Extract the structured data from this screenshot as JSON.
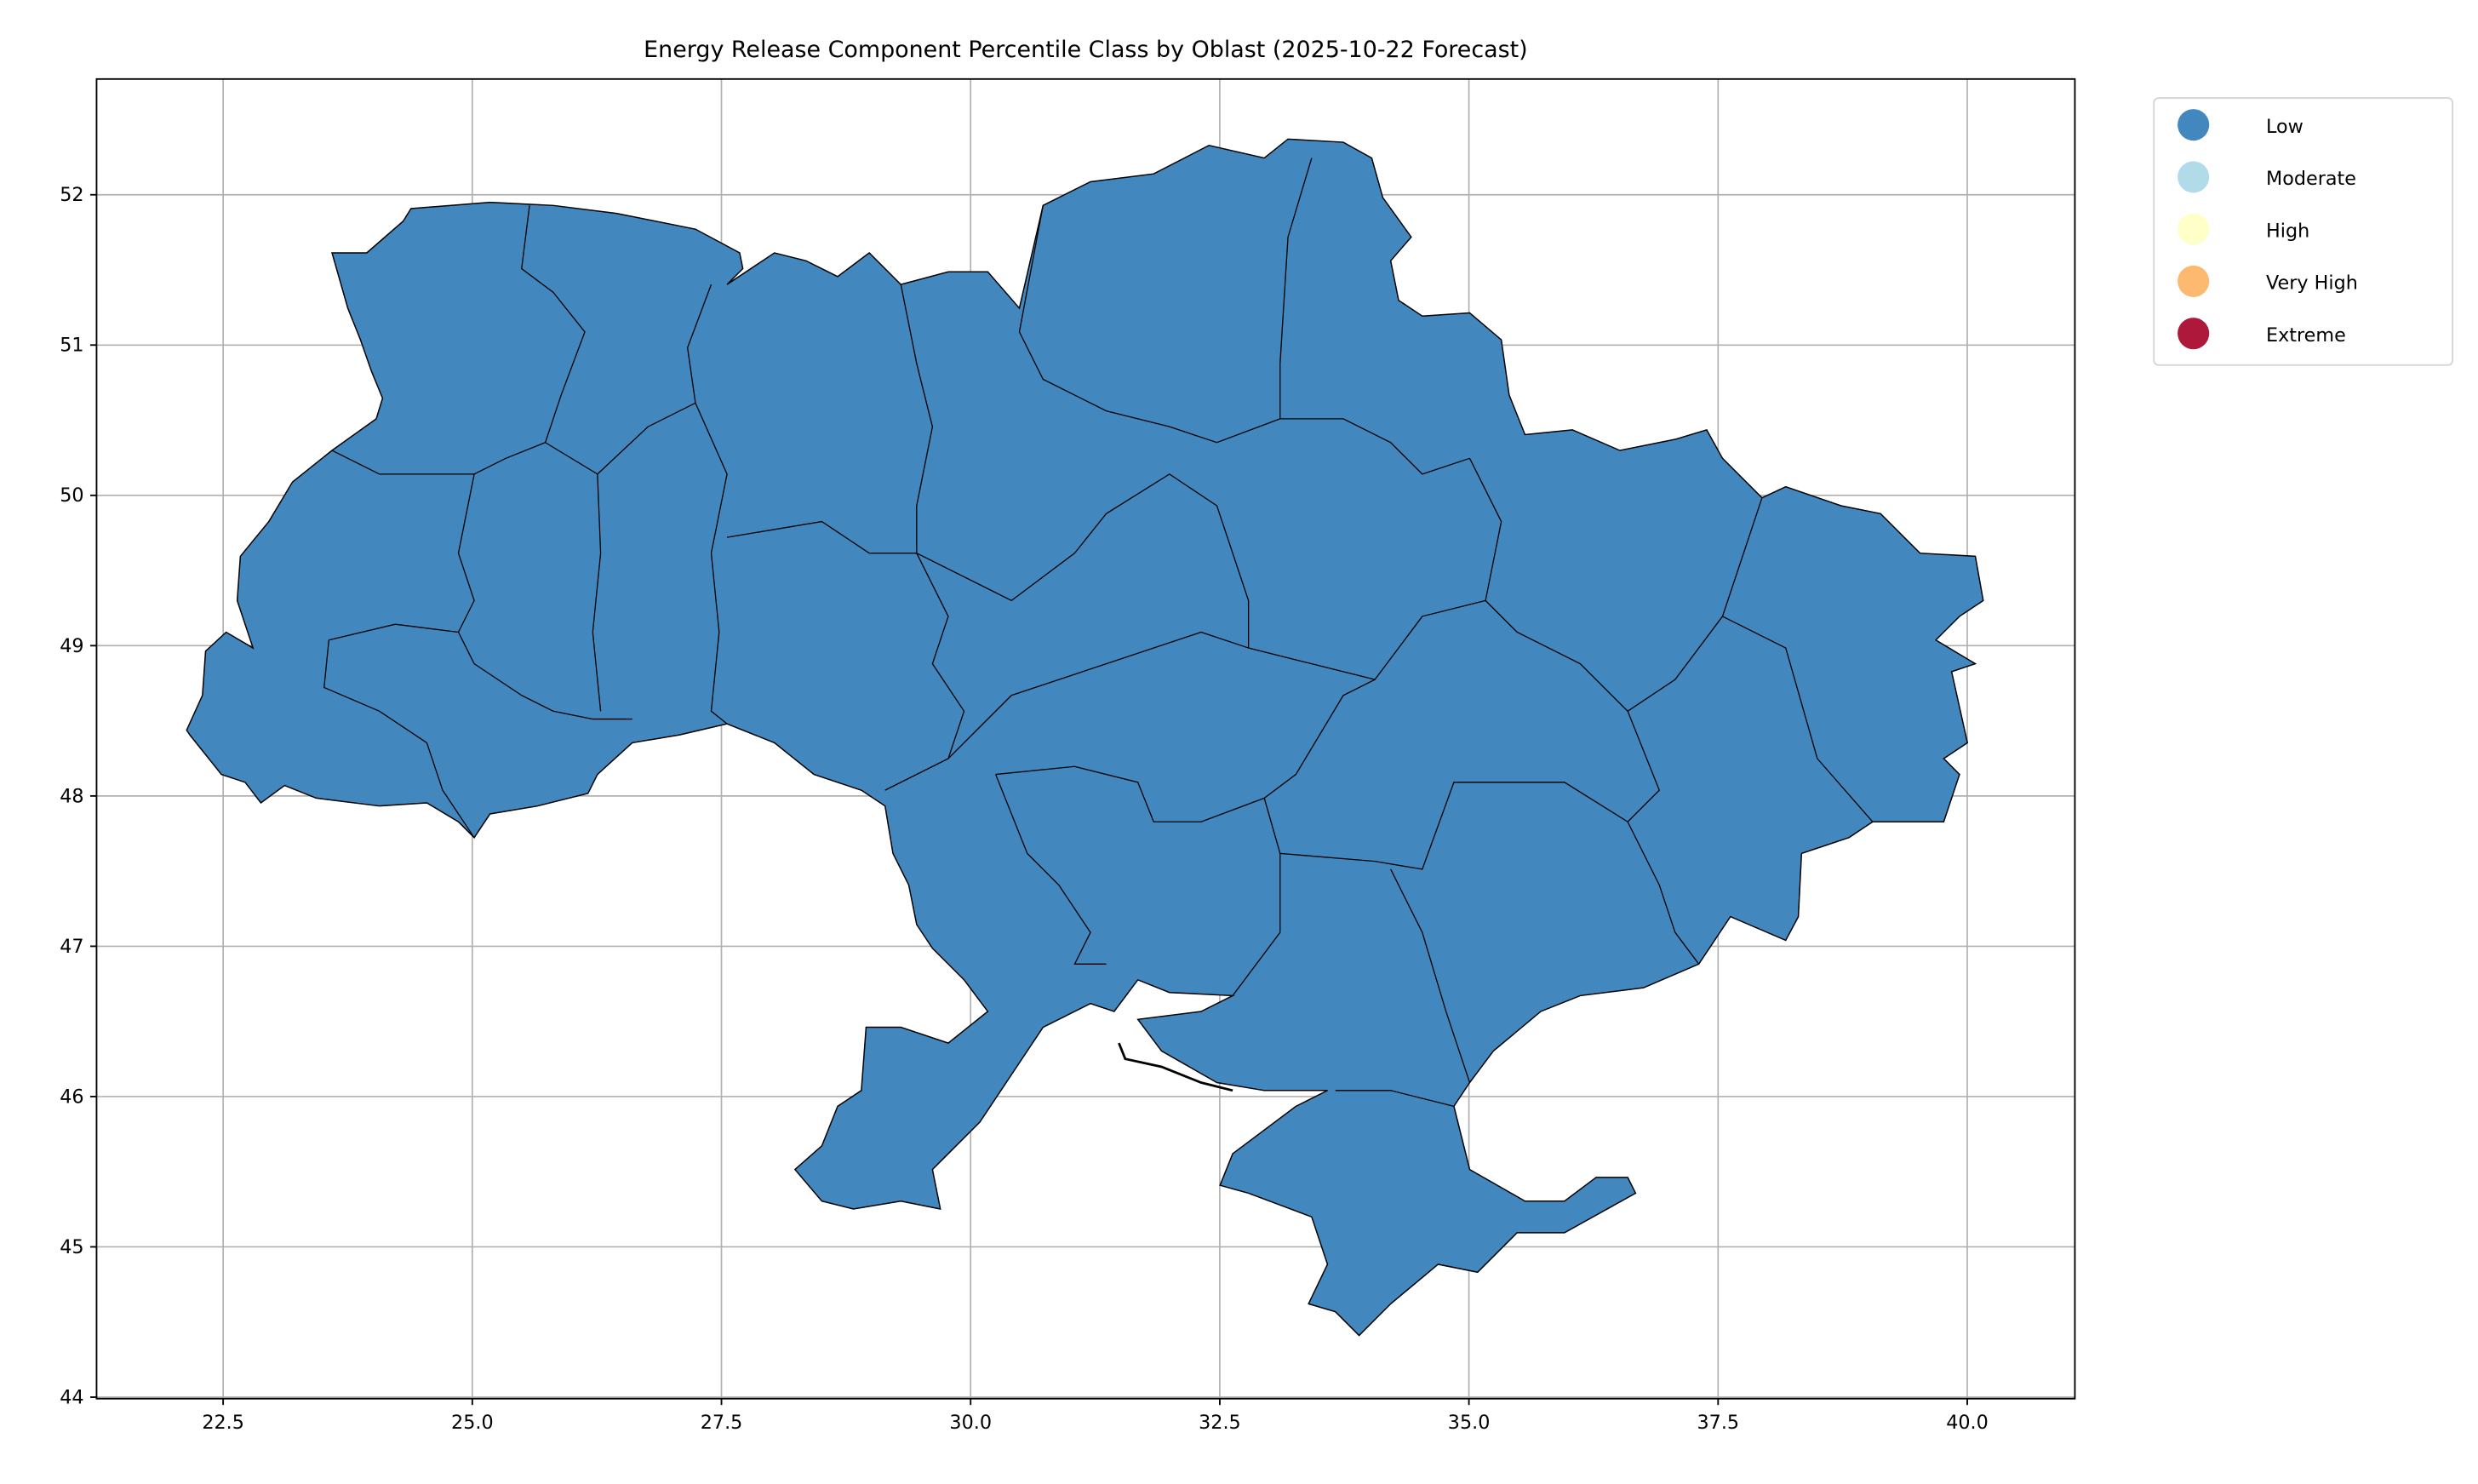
{
  "chart_data": {
    "type": "map",
    "title": "Energy Release Component Percentile Class by Oblast (2025-10-22 Forecast)",
    "xlim": [
      21.23,
      41.08
    ],
    "ylim": [
      43.99,
      52.77
    ],
    "x_ticks": [
      "22.5",
      "25.0",
      "27.5",
      "30.0",
      "32.5",
      "35.0",
      "37.5",
      "40.0"
    ],
    "x_tick_values": [
      22.5,
      25.0,
      27.5,
      30.0,
      32.5,
      35.0,
      37.5,
      40.0
    ],
    "y_ticks": [
      "44",
      "45",
      "46",
      "47",
      "48",
      "49",
      "50",
      "51",
      "52"
    ],
    "y_tick_values": [
      44,
      45,
      46,
      47,
      48,
      49,
      50,
      51,
      52
    ],
    "grid": true,
    "legend_position": "outside-top-right",
    "legend": [
      {
        "label": "Low",
        "color": "#4287bd"
      },
      {
        "label": "Moderate",
        "color": "#b2dbea"
      },
      {
        "label": "High",
        "color": "#ffffc8"
      },
      {
        "label": "Very High",
        "color": "#fdb96f"
      },
      {
        "label": "Extreme",
        "color": "#ad183b"
      }
    ],
    "region_class_all": "Low",
    "fill_color": "#4287bd",
    "border_color": "#000000"
  }
}
